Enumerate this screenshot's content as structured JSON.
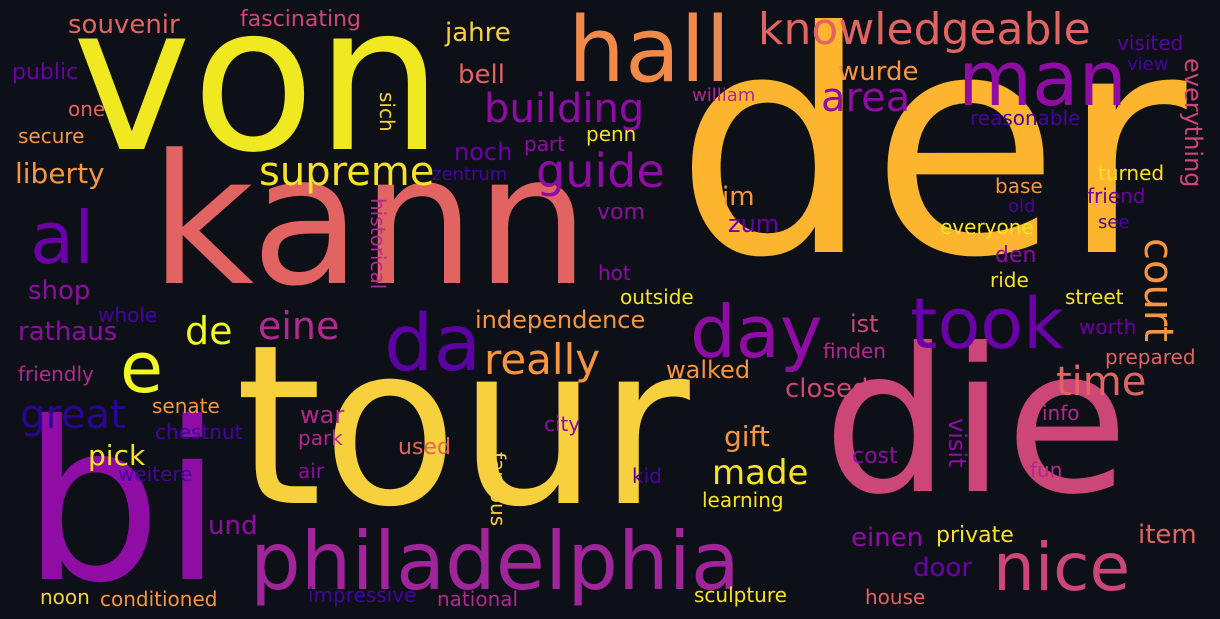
{
  "background": "#0d1017",
  "palette": {
    "yellow": "#f0f921",
    "gold": "#f7d13d",
    "orange": "#fdb42f",
    "light_orange": "#f89540",
    "salmon": "#e16462",
    "pink": "#cc4778",
    "magenta": "#b12a90",
    "purple": "#8f0da4",
    "violet": "#6a00a8",
    "indigo": "#46039f",
    "navy": "#2a0593"
  },
  "words": [
    {
      "text": "der",
      "color": "#fdb42f"
    },
    {
      "text": "tour",
      "color": "#f7d13d"
    },
    {
      "text": "von",
      "color": "#f0e921"
    },
    {
      "text": "kann",
      "color": "#e16462"
    },
    {
      "text": "die",
      "color": "#cc4778"
    },
    {
      "text": "bi",
      "color": "#8f0da4"
    },
    {
      "text": "philadelphia",
      "color": "#a0249a"
    },
    {
      "text": "hall",
      "color": "#f08a4b"
    },
    {
      "text": "man",
      "color": "#8f0da4"
    },
    {
      "text": "knowledgeable",
      "color": "#e16462"
    },
    {
      "text": "took",
      "color": "#6a00a8"
    },
    {
      "text": "day",
      "color": "#8f0da4"
    },
    {
      "text": "da",
      "color": "#5b02a3"
    },
    {
      "text": "al",
      "color": "#6a00a8"
    },
    {
      "text": "e",
      "color": "#f0f921"
    },
    {
      "text": "nice",
      "color": "#cc4778"
    },
    {
      "text": "supreme",
      "color": "#f7e225"
    },
    {
      "text": "guide",
      "color": "#8f0da4"
    },
    {
      "text": "building",
      "color": "#8f0da4"
    },
    {
      "text": "area",
      "color": "#8f0da4"
    },
    {
      "text": "really",
      "color": "#f89540"
    },
    {
      "text": "great",
      "color": "#2a0593"
    },
    {
      "text": "eine",
      "color": "#b12a90"
    },
    {
      "text": "de",
      "color": "#f0f921"
    },
    {
      "text": "time",
      "color": "#e16462"
    },
    {
      "text": "court",
      "color": "#f89540"
    },
    {
      "text": "made",
      "color": "#f7e225"
    },
    {
      "text": "independence",
      "color": "#f89540"
    },
    {
      "text": "souvenir",
      "color": "#e16462"
    },
    {
      "text": "fascinating",
      "color": "#cc4778"
    },
    {
      "text": "jahre",
      "color": "#f7d13d"
    },
    {
      "text": "bell",
      "color": "#e16462"
    },
    {
      "text": "wurde",
      "color": "#f89540"
    },
    {
      "text": "liberty",
      "color": "#f89540"
    },
    {
      "text": "public",
      "color": "#6a00a8"
    },
    {
      "text": "one",
      "color": "#e16462"
    },
    {
      "text": "secure",
      "color": "#f89540"
    },
    {
      "text": "visited",
      "color": "#5b02a3"
    },
    {
      "text": "view",
      "color": "#46039f"
    },
    {
      "text": "everything",
      "color": "#cc4778"
    },
    {
      "text": "reasonable",
      "color": "#46039f"
    },
    {
      "text": "william",
      "color": "#b12a90"
    },
    {
      "text": "sich",
      "color": "#f7d13d"
    },
    {
      "text": "penn",
      "color": "#f7e225"
    },
    {
      "text": "part",
      "color": "#8f0da4"
    },
    {
      "text": "noch",
      "color": "#6a00a8"
    },
    {
      "text": "zentrum",
      "color": "#46039f"
    },
    {
      "text": "historical",
      "color": "#b12a90"
    },
    {
      "text": "im",
      "color": "#f89540"
    },
    {
      "text": "zum",
      "color": "#6a00a8"
    },
    {
      "text": "vom",
      "color": "#8f0da4"
    },
    {
      "text": "turned",
      "color": "#f7e225"
    },
    {
      "text": "base",
      "color": "#f89540"
    },
    {
      "text": "friend",
      "color": "#6a00a8"
    },
    {
      "text": "old",
      "color": "#46039f"
    },
    {
      "text": "see",
      "color": "#46039f"
    },
    {
      "text": "everyone",
      "color": "#f7e225"
    },
    {
      "text": "den",
      "color": "#8f0da4"
    },
    {
      "text": "ride",
      "color": "#f7e225"
    },
    {
      "text": "shop",
      "color": "#8f0da4"
    },
    {
      "text": "hot",
      "color": "#8f0da4"
    },
    {
      "text": "outside",
      "color": "#f7e225"
    },
    {
      "text": "street",
      "color": "#f7e225"
    },
    {
      "text": "whole",
      "color": "#46039f"
    },
    {
      "text": "rathaus",
      "color": "#8f0da4"
    },
    {
      "text": "ist",
      "color": "#cc4778"
    },
    {
      "text": "worth",
      "color": "#6a00a8"
    },
    {
      "text": "finden",
      "color": "#b12a90"
    },
    {
      "text": "friendly",
      "color": "#b12a90"
    },
    {
      "text": "prepared",
      "color": "#e16462"
    },
    {
      "text": "walked",
      "color": "#f89540"
    },
    {
      "text": "closed",
      "color": "#cc4778"
    },
    {
      "text": "senate",
      "color": "#f89540"
    },
    {
      "text": "war",
      "color": "#b12a90"
    },
    {
      "text": "visit",
      "color": "#8f0da4"
    },
    {
      "text": "info",
      "color": "#b12a90"
    },
    {
      "text": "chestnut",
      "color": "#46039f"
    },
    {
      "text": "park",
      "color": "#b12a90"
    },
    {
      "text": "city",
      "color": "#8f0da4"
    },
    {
      "text": "gift",
      "color": "#f89540"
    },
    {
      "text": "pick",
      "color": "#f7e225"
    },
    {
      "text": "used",
      "color": "#e16462"
    },
    {
      "text": "cost",
      "color": "#8f0da4"
    },
    {
      "text": "weitere",
      "color": "#46039f"
    },
    {
      "text": "air",
      "color": "#8f0da4"
    },
    {
      "text": "famous",
      "color": "#f7d13d"
    },
    {
      "text": "kid",
      "color": "#46039f"
    },
    {
      "text": "fun",
      "color": "#b12a90"
    },
    {
      "text": "learning",
      "color": "#f7e225"
    },
    {
      "text": "und",
      "color": "#8f0da4"
    },
    {
      "text": "einen",
      "color": "#8f0da4"
    },
    {
      "text": "private",
      "color": "#f7e225"
    },
    {
      "text": "item",
      "color": "#e16462"
    },
    {
      "text": "door",
      "color": "#6a00a8"
    },
    {
      "text": "noon",
      "color": "#f7d13d"
    },
    {
      "text": "conditioned",
      "color": "#f89540"
    },
    {
      "text": "impressive",
      "color": "#46039f"
    },
    {
      "text": "national",
      "color": "#b12a90"
    },
    {
      "text": "sculpture",
      "color": "#f7e225"
    },
    {
      "text": "house",
      "color": "#e16462"
    }
  ]
}
